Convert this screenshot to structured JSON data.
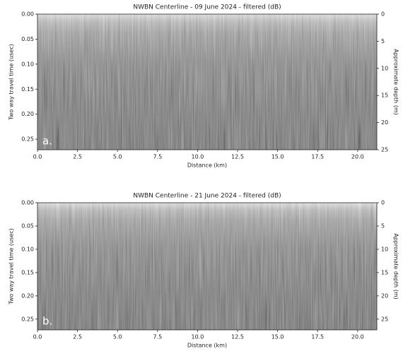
{
  "chart_data": [
    {
      "type": "radargram",
      "title": "NWBN Centerline - 09 June 2024 - filtered (dB)",
      "annotation": "a.",
      "x_label": "Distance (km)",
      "y_label": "Two way travel time (usec)",
      "y2_label": "Approximate depth (m)",
      "xlim": [
        0,
        21.2
      ],
      "xticks": [
        {
          "value": 0,
          "label": "0.0"
        },
        2.5,
        {
          "value": 5,
          "label": "5.0"
        },
        7.5,
        {
          "value": 10,
          "label": "10.0"
        },
        12.5,
        {
          "value": 15,
          "label": "15.0"
        },
        17.5,
        {
          "value": 20,
          "label": "20.0"
        }
      ],
      "ylim": [
        0,
        0.271
      ],
      "y_inverted": true,
      "yticks": [
        {
          "value": 0,
          "label": "0.00"
        },
        0.05,
        {
          "value": 0.1,
          "label": "0.10"
        },
        0.15,
        {
          "value": 0.2,
          "label": "0.20"
        },
        0.25
      ],
      "y2lim": [
        0,
        25
      ],
      "y2ticks": [
        0,
        5,
        10,
        15,
        20,
        25
      ]
    },
    {
      "type": "radargram",
      "title": "NWBN Centerline - 21 June 2024 - filtered (dB)",
      "annotation": "b.",
      "x_label": "Distance (km)",
      "y_label": "Two way travel time (usec)",
      "y2_label": "Approximate depth (m)",
      "xlim": [
        0,
        21.2
      ],
      "xticks": [
        {
          "value": 0,
          "label": "0.0"
        },
        2.5,
        {
          "value": 5,
          "label": "5.0"
        },
        7.5,
        {
          "value": 10,
          "label": "10.0"
        },
        12.5,
        {
          "value": 15,
          "label": "15.0"
        },
        17.5,
        {
          "value": 20,
          "label": "20.0"
        }
      ],
      "ylim": [
        0,
        0.273
      ],
      "y_inverted": true,
      "yticks": [
        {
          "value": 0,
          "label": "0.00"
        },
        0.05,
        {
          "value": 0.1,
          "label": "0.10"
        },
        0.15,
        {
          "value": 0.2,
          "label": "0.20"
        },
        0.25
      ],
      "y2lim": [
        0,
        27.3
      ],
      "y2ticks": [
        0,
        5,
        10,
        15,
        20,
        25
      ]
    }
  ]
}
